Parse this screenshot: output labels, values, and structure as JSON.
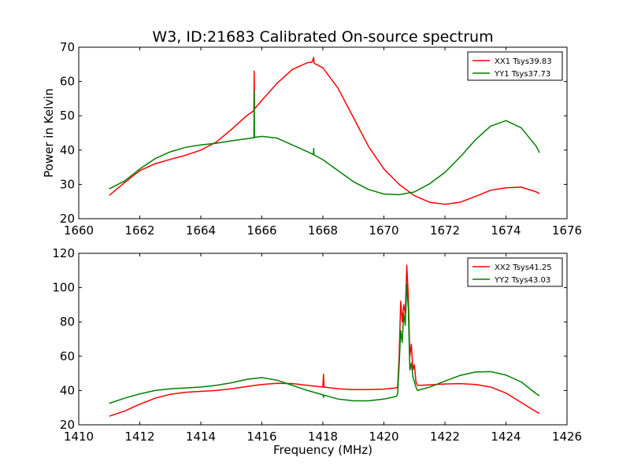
{
  "title": "W3, ID:21683 Calibrated On-source spectrum",
  "chart_data": [
    {
      "type": "line",
      "title": "W3, ID:21683 Calibrated On-source spectrum",
      "xlabel": "",
      "ylabel": "Power in Kelvin",
      "xlim": [
        1660,
        1676
      ],
      "ylim": [
        20,
        70
      ],
      "xticks": [
        1660,
        1662,
        1664,
        1666,
        1668,
        1670,
        1672,
        1674,
        1676
      ],
      "yticks": [
        20,
        30,
        40,
        50,
        60,
        70
      ],
      "legend_position": "top-right",
      "grid": false,
      "series": [
        {
          "name": "XX1 Tsys39.83",
          "color": "#ff0000",
          "x": [
            1661.0,
            1661.5,
            1662.0,
            1662.5,
            1663.0,
            1663.5,
            1664.0,
            1664.5,
            1665.0,
            1665.5,
            1665.74,
            1665.75,
            1665.76,
            1666.0,
            1666.5,
            1667.0,
            1667.5,
            1667.64,
            1667.7,
            1667.71,
            1667.72,
            1668.0,
            1668.5,
            1669.0,
            1669.5,
            1670.0,
            1670.5,
            1671.0,
            1671.5,
            1672.0,
            1672.5,
            1673.0,
            1673.5,
            1674.0,
            1674.5,
            1675.0,
            1675.1
          ],
          "y": [
            26.8,
            30.5,
            34.0,
            36.0,
            37.3,
            38.5,
            40.0,
            42.3,
            46.0,
            50.0,
            51.5,
            63.0,
            52.0,
            54.5,
            59.5,
            63.5,
            65.5,
            65.6,
            67.0,
            65.4,
            65.3,
            64.0,
            58.0,
            49.5,
            41.0,
            34.5,
            30.0,
            26.7,
            24.8,
            24.2,
            24.8,
            26.5,
            28.3,
            29.0,
            29.2,
            27.8,
            27.3
          ]
        },
        {
          "name": "YY1 Tsys37.73",
          "color": "#008000",
          "x": [
            1661.0,
            1661.5,
            1662.0,
            1662.5,
            1663.0,
            1663.5,
            1664.0,
            1664.5,
            1665.0,
            1665.5,
            1665.74,
            1665.75,
            1665.76,
            1666.0,
            1666.5,
            1667.0,
            1667.5,
            1667.69,
            1667.7,
            1667.71,
            1668.0,
            1668.5,
            1669.0,
            1669.5,
            1670.0,
            1670.5,
            1671.0,
            1671.5,
            1672.0,
            1672.5,
            1673.0,
            1673.5,
            1674.0,
            1674.5,
            1675.0,
            1675.1
          ],
          "y": [
            28.7,
            31.0,
            34.5,
            37.5,
            39.5,
            40.8,
            41.5,
            42.0,
            42.7,
            43.3,
            43.6,
            57.0,
            43.7,
            44.0,
            43.5,
            41.5,
            39.5,
            38.7,
            40.5,
            38.6,
            37.2,
            34.0,
            30.8,
            28.5,
            27.2,
            27.0,
            27.8,
            30.2,
            33.5,
            38.0,
            43.0,
            47.0,
            48.6,
            46.5,
            41.0,
            39.2
          ]
        }
      ]
    },
    {
      "type": "line",
      "title": "",
      "xlabel": "Frequency (MHz)",
      "ylabel": "",
      "xlim": [
        1410,
        1426
      ],
      "ylim": [
        20,
        120
      ],
      "xticks": [
        1410,
        1412,
        1414,
        1416,
        1418,
        1420,
        1422,
        1424,
        1426
      ],
      "yticks": [
        20,
        40,
        60,
        80,
        100,
        120
      ],
      "legend_position": "top-right",
      "grid": false,
      "series": [
        {
          "name": "XX2 Tsys41.25",
          "color": "#ff0000",
          "x": [
            1411.0,
            1411.5,
            1412.0,
            1412.5,
            1413.0,
            1413.5,
            1414.0,
            1414.5,
            1415.0,
            1415.5,
            1416.0,
            1416.5,
            1417.0,
            1417.5,
            1418.0,
            1418.02,
            1418.04,
            1418.5,
            1419.0,
            1419.5,
            1420.0,
            1420.4,
            1420.45,
            1420.5,
            1420.55,
            1420.6,
            1420.65,
            1420.7,
            1420.75,
            1420.8,
            1420.85,
            1420.9,
            1420.95,
            1421.0,
            1421.05,
            1421.1,
            1421.5,
            1422.0,
            1422.5,
            1423.0,
            1423.5,
            1424.0,
            1424.5,
            1425.0,
            1425.1
          ],
          "y": [
            25.0,
            28.0,
            32.0,
            35.5,
            37.8,
            39.0,
            39.5,
            40.0,
            41.0,
            42.3,
            43.5,
            44.2,
            44.0,
            43.0,
            42.0,
            49.5,
            42.0,
            41.0,
            40.5,
            40.5,
            40.8,
            41.5,
            42.0,
            60.0,
            92.0,
            80.0,
            90.0,
            85.0,
            113.0,
            95.0,
            60.0,
            67.0,
            52.0,
            55.0,
            45.0,
            43.0,
            43.3,
            43.8,
            44.0,
            43.5,
            42.0,
            38.5,
            33.0,
            27.5,
            26.7
          ]
        },
        {
          "name": "YY2 Tsys43.03",
          "color": "#008000",
          "x": [
            1411.0,
            1411.5,
            1412.0,
            1412.5,
            1413.0,
            1413.5,
            1414.0,
            1414.5,
            1415.0,
            1415.5,
            1416.0,
            1416.5,
            1417.0,
            1417.5,
            1418.0,
            1418.02,
            1418.04,
            1418.5,
            1419.0,
            1419.5,
            1420.0,
            1420.4,
            1420.45,
            1420.5,
            1420.55,
            1420.6,
            1420.65,
            1420.7,
            1420.75,
            1420.8,
            1420.85,
            1420.9,
            1420.95,
            1421.0,
            1421.05,
            1421.1,
            1421.5,
            1422.0,
            1422.5,
            1423.0,
            1423.5,
            1424.0,
            1424.5,
            1425.0,
            1425.1
          ],
          "y": [
            32.5,
            35.5,
            38.0,
            40.0,
            41.0,
            41.5,
            42.0,
            43.0,
            44.5,
            46.5,
            47.5,
            46.0,
            43.0,
            40.0,
            37.5,
            36.0,
            37.3,
            35.0,
            34.0,
            34.0,
            35.0,
            36.5,
            38.0,
            55.0,
            75.0,
            68.0,
            85.0,
            78.0,
            102.0,
            88.0,
            52.0,
            56.0,
            48.0,
            45.0,
            42.0,
            40.0,
            42.0,
            45.5,
            48.8,
            50.8,
            51.0,
            49.0,
            45.0,
            38.0,
            37.0
          ]
        }
      ]
    }
  ]
}
